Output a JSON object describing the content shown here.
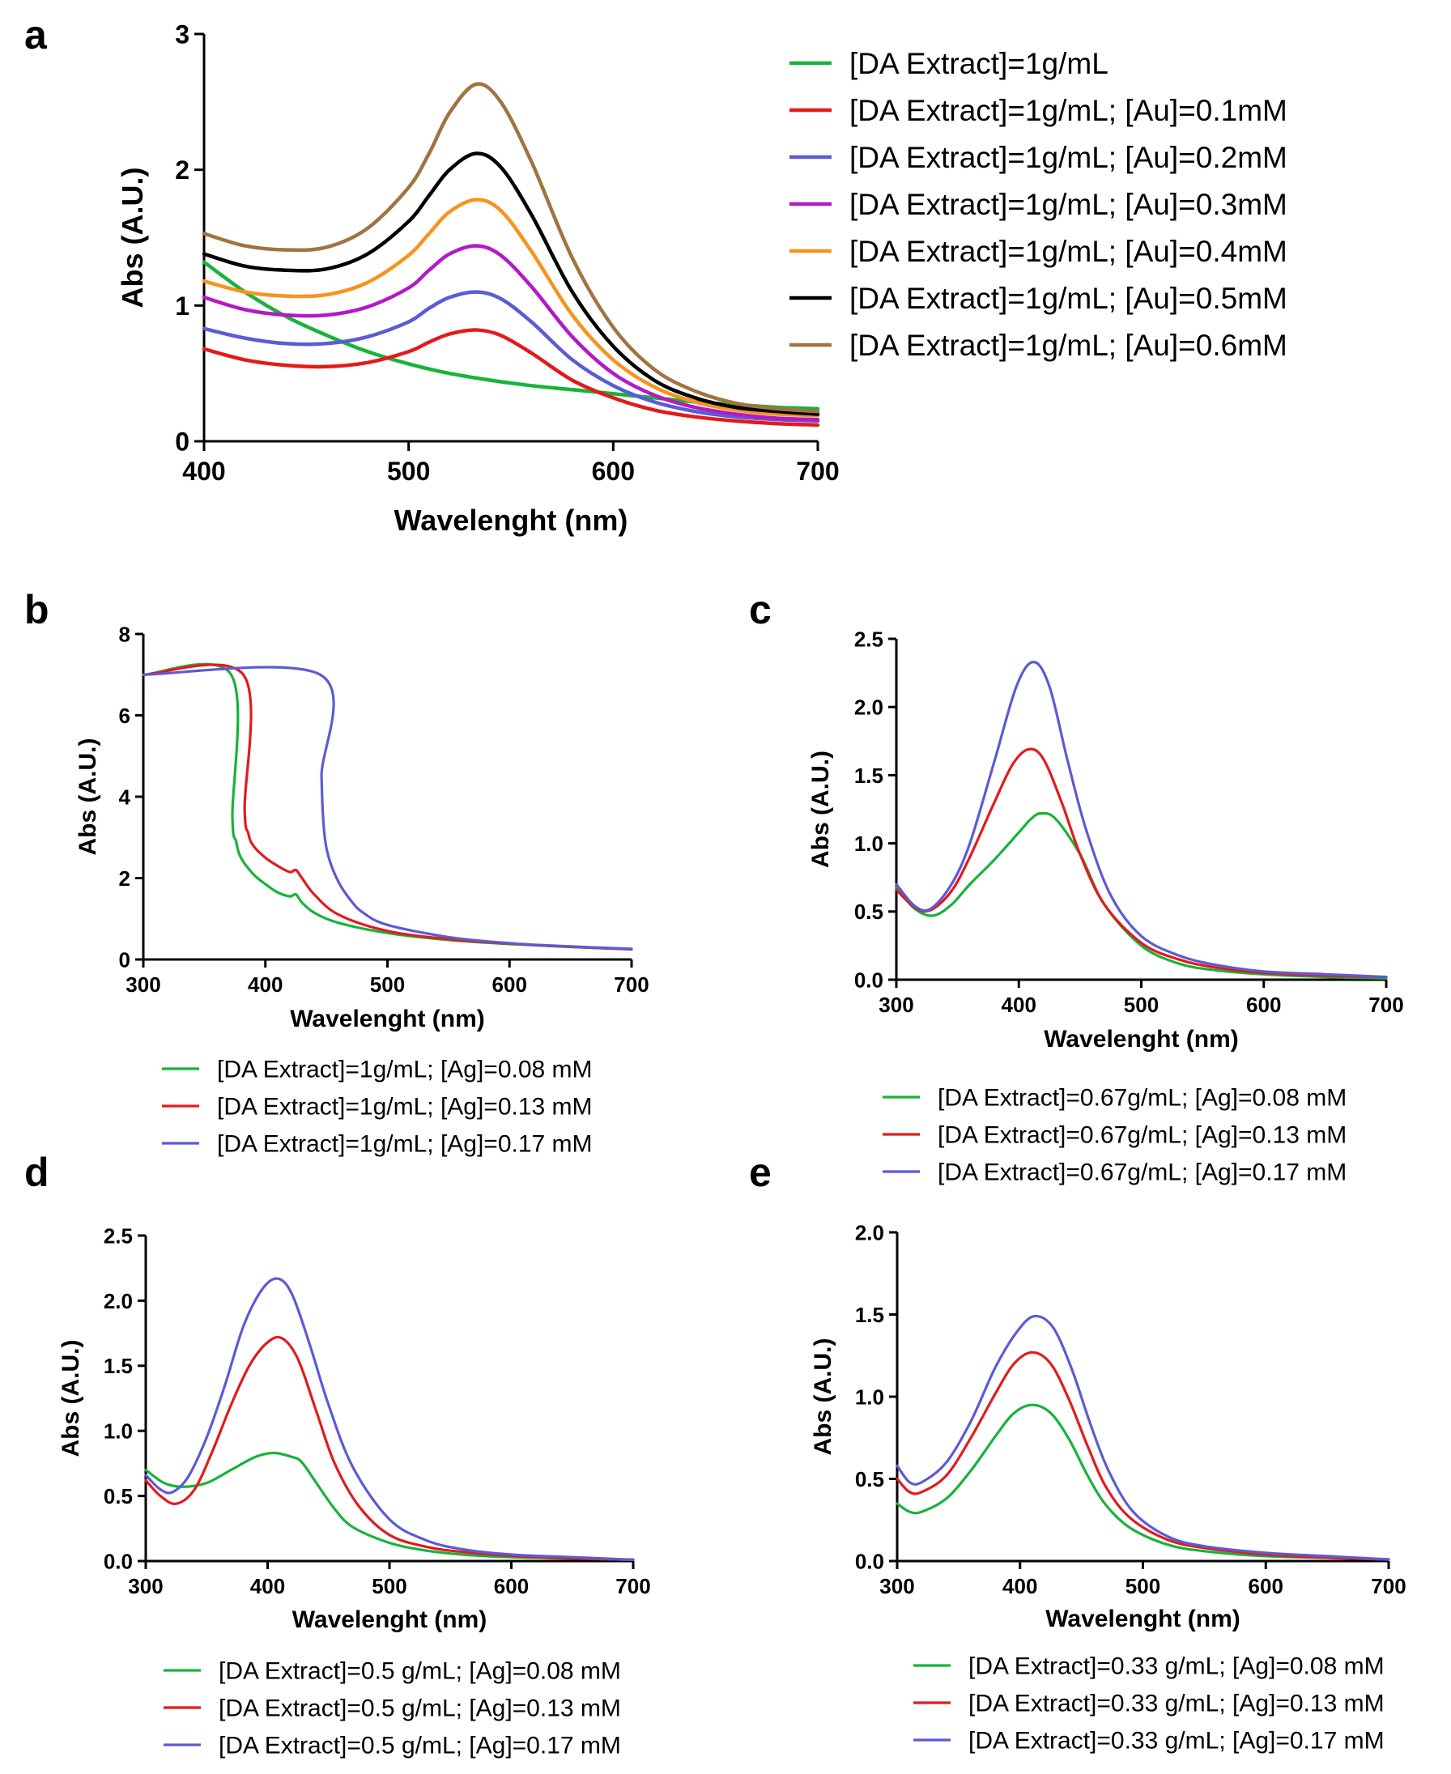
{
  "figure": {
    "panels": [
      "a",
      "b",
      "c",
      "d",
      "e"
    ]
  },
  "chart_data": [
    {
      "panel": "a",
      "type": "line",
      "xlabel": "Wavelenght (nm)",
      "ylabel": "Abs (A.U.)",
      "xlim": [
        400,
        700
      ],
      "ylim": [
        0,
        3
      ],
      "xticks": [
        400,
        500,
        600,
        700
      ],
      "yticks": [
        0,
        1,
        2,
        3
      ],
      "legend_position": "right",
      "series": [
        {
          "name": "[DA Extract]=1g/mL",
          "color": "#17b33a",
          "x": [
            400,
            420,
            440,
            460,
            480,
            500,
            520,
            540,
            560,
            580,
            600,
            620,
            640,
            660,
            680,
            700
          ],
          "y": [
            1.32,
            1.1,
            0.92,
            0.78,
            0.66,
            0.57,
            0.5,
            0.45,
            0.41,
            0.38,
            0.35,
            0.32,
            0.29,
            0.27,
            0.25,
            0.24
          ]
        },
        {
          "name": "[DA Extract]=1g/mL; [Au]=0.1mM",
          "color": "#e31a1c",
          "x": [
            400,
            420,
            440,
            460,
            480,
            500,
            510,
            520,
            533,
            545,
            560,
            580,
            600,
            620,
            640,
            660,
            680,
            700
          ],
          "y": [
            0.68,
            0.6,
            0.56,
            0.55,
            0.58,
            0.66,
            0.73,
            0.79,
            0.82,
            0.78,
            0.65,
            0.45,
            0.32,
            0.23,
            0.18,
            0.15,
            0.13,
            0.12
          ]
        },
        {
          "name": "[DA Extract]=1g/mL; [Au]=0.2mM",
          "color": "#5b5bd6",
          "x": [
            400,
            420,
            440,
            460,
            480,
            500,
            510,
            520,
            533,
            545,
            560,
            580,
            600,
            620,
            640,
            660,
            680,
            700
          ],
          "y": [
            0.83,
            0.76,
            0.72,
            0.72,
            0.77,
            0.88,
            0.98,
            1.06,
            1.1,
            1.05,
            0.88,
            0.6,
            0.41,
            0.29,
            0.22,
            0.18,
            0.16,
            0.15
          ]
        },
        {
          "name": "[DA Extract]=1g/mL; [Au]=0.3mM",
          "color": "#b31ac6",
          "x": [
            400,
            420,
            440,
            460,
            480,
            500,
            510,
            520,
            533,
            545,
            560,
            580,
            600,
            620,
            640,
            660,
            680,
            700
          ],
          "y": [
            1.06,
            0.97,
            0.93,
            0.93,
            0.99,
            1.13,
            1.26,
            1.38,
            1.44,
            1.37,
            1.14,
            0.77,
            0.5,
            0.34,
            0.25,
            0.2,
            0.17,
            0.16
          ]
        },
        {
          "name": "[DA Extract]=1g/mL; [Au]=0.4mM",
          "color": "#f7931e",
          "x": [
            400,
            420,
            440,
            460,
            480,
            500,
            510,
            520,
            533,
            545,
            560,
            580,
            600,
            620,
            640,
            660,
            680,
            700
          ],
          "y": [
            1.18,
            1.1,
            1.07,
            1.08,
            1.17,
            1.37,
            1.53,
            1.69,
            1.78,
            1.7,
            1.4,
            0.93,
            0.6,
            0.4,
            0.29,
            0.23,
            0.2,
            0.19
          ]
        },
        {
          "name": "[DA Extract]=1g/mL; [Au]=0.5mM",
          "color": "#000000",
          "x": [
            400,
            420,
            440,
            460,
            480,
            500,
            510,
            520,
            533,
            545,
            560,
            580,
            600,
            620,
            640,
            660,
            680,
            700
          ],
          "y": [
            1.38,
            1.29,
            1.26,
            1.27,
            1.38,
            1.62,
            1.81,
            2.0,
            2.12,
            2.02,
            1.67,
            1.1,
            0.7,
            0.45,
            0.32,
            0.25,
            0.22,
            0.2
          ]
        },
        {
          "name": "[DA Extract]=1g/mL; [Au]=0.6mM",
          "color": "#a0743f",
          "x": [
            400,
            420,
            440,
            460,
            480,
            500,
            510,
            520,
            533,
            545,
            560,
            580,
            600,
            620,
            640,
            660,
            680,
            700
          ],
          "y": [
            1.53,
            1.44,
            1.41,
            1.43,
            1.57,
            1.87,
            2.12,
            2.42,
            2.63,
            2.5,
            2.06,
            1.35,
            0.84,
            0.53,
            0.37,
            0.28,
            0.24,
            0.22
          ]
        }
      ]
    },
    {
      "panel": "b",
      "type": "line",
      "xlabel": "Wavelenght (nm)",
      "ylabel": "Abs (A.U.)",
      "xlim": [
        300,
        700
      ],
      "ylim": [
        0,
        8
      ],
      "xticks": [
        300,
        400,
        500,
        600,
        700
      ],
      "yticks": [
        0,
        2,
        4,
        6,
        8
      ],
      "legend_position": "bottom",
      "series": [
        {
          "name": "[DA Extract]=1g/mL; [Ag]=0.08 mM",
          "color": "#17b33a",
          "x": [
            300,
            372,
            373,
            376,
            380,
            390,
            400,
            410,
            420,
            425,
            430,
            440,
            460,
            500,
            550,
            600,
            650,
            700
          ],
          "y": [
            7.0,
            7.0,
            3.5,
            2.9,
            2.5,
            2.1,
            1.85,
            1.65,
            1.55,
            1.6,
            1.4,
            1.15,
            0.9,
            0.65,
            0.48,
            0.38,
            0.31,
            0.25
          ]
        },
        {
          "name": "[DA Extract]=1g/mL; [Ag]=0.13 mM",
          "color": "#e31a1c",
          "x": [
            300,
            382,
            383,
            386,
            390,
            400,
            410,
            420,
            425,
            430,
            440,
            460,
            500,
            550,
            600,
            650,
            700
          ],
          "y": [
            7.0,
            7.0,
            3.7,
            3.1,
            2.8,
            2.5,
            2.3,
            2.15,
            2.2,
            2.0,
            1.6,
            1.1,
            0.7,
            0.5,
            0.39,
            0.31,
            0.25
          ]
        },
        {
          "name": "[DA Extract]=1g/mL; [Ag]=0.17 mM",
          "color": "#5b5bd6",
          "x": [
            300,
            445,
            446,
            448,
            452,
            460,
            470,
            480,
            500,
            550,
            600,
            650,
            700
          ],
          "y": [
            7.0,
            7.0,
            4.5,
            3.2,
            2.5,
            1.9,
            1.45,
            1.15,
            0.85,
            0.55,
            0.4,
            0.32,
            0.26
          ]
        }
      ]
    },
    {
      "panel": "c",
      "type": "line",
      "xlabel": "Wavelenght (nm)",
      "ylabel": "Abs (A.U.)",
      "xlim": [
        300,
        700
      ],
      "ylim": [
        0,
        2.5
      ],
      "xticks": [
        300,
        400,
        500,
        600,
        700
      ],
      "yticks": [
        "0.0",
        "0.5",
        "1.0",
        "1.5",
        "2.0",
        "2.5"
      ],
      "legend_position": "bottom",
      "series": [
        {
          "name": "[DA Extract]=0.67g/mL; [Ag]=0.08 mM",
          "color": "#17b33a",
          "x": [
            300,
            315,
            330,
            345,
            360,
            380,
            400,
            410,
            418,
            430,
            450,
            470,
            500,
            530,
            560,
            600,
            650,
            700
          ],
          "y": [
            0.68,
            0.52,
            0.47,
            0.55,
            0.7,
            0.88,
            1.08,
            1.18,
            1.22,
            1.18,
            0.92,
            0.55,
            0.25,
            0.12,
            0.07,
            0.04,
            0.02,
            0.01
          ]
        },
        {
          "name": "[DA Extract]=0.67g/mL; [Ag]=0.13 mM",
          "color": "#e31a1c",
          "x": [
            300,
            315,
            328,
            345,
            360,
            380,
            395,
            408,
            420,
            435,
            450,
            470,
            500,
            530,
            560,
            600,
            650,
            700
          ],
          "y": [
            0.66,
            0.53,
            0.51,
            0.65,
            0.9,
            1.3,
            1.58,
            1.69,
            1.62,
            1.3,
            0.92,
            0.55,
            0.27,
            0.15,
            0.09,
            0.05,
            0.03,
            0.02
          ]
        },
        {
          "name": "[DA Extract]=0.67g/mL; [Ag]=0.17 mM",
          "color": "#5b5bd6",
          "x": [
            300,
            315,
            328,
            345,
            360,
            380,
            398,
            412,
            425,
            440,
            455,
            475,
            500,
            530,
            560,
            600,
            650,
            700
          ],
          "y": [
            0.7,
            0.54,
            0.52,
            0.7,
            1.0,
            1.6,
            2.15,
            2.33,
            2.15,
            1.6,
            1.1,
            0.62,
            0.32,
            0.18,
            0.11,
            0.06,
            0.04,
            0.02
          ]
        }
      ]
    },
    {
      "panel": "d",
      "type": "line",
      "xlabel": "Wavelenght (nm)",
      "ylabel": "Abs (A.U.)",
      "xlim": [
        300,
        700
      ],
      "ylim": [
        0,
        2.5
      ],
      "xticks": [
        300,
        400,
        500,
        600,
        700
      ],
      "yticks": [
        "0.0",
        "0.5",
        "1.0",
        "1.5",
        "2.0",
        "2.5"
      ],
      "legend_position": "bottom",
      "series": [
        {
          "name": "[DA Extract]=0.5 g/mL; [Ag]=0.08 mM",
          "color": "#17b33a",
          "x": [
            300,
            315,
            330,
            350,
            370,
            390,
            405,
            420,
            428,
            440,
            455,
            470,
            500,
            530,
            560,
            600,
            650,
            700
          ],
          "y": [
            0.7,
            0.6,
            0.57,
            0.6,
            0.7,
            0.8,
            0.83,
            0.8,
            0.76,
            0.6,
            0.4,
            0.26,
            0.14,
            0.08,
            0.05,
            0.03,
            0.02,
            0.01
          ]
        },
        {
          "name": "[DA Extract]=0.5 g/mL; [Ag]=0.13 mM",
          "color": "#e31a1c",
          "x": [
            300,
            312,
            325,
            340,
            355,
            370,
            385,
            400,
            412,
            425,
            440,
            455,
            475,
            500,
            530,
            560,
            600,
            650,
            700
          ],
          "y": [
            0.62,
            0.5,
            0.44,
            0.55,
            0.85,
            1.2,
            1.5,
            1.68,
            1.71,
            1.55,
            1.15,
            0.75,
            0.42,
            0.2,
            0.11,
            0.07,
            0.04,
            0.02,
            0.01
          ]
        },
        {
          "name": "[DA Extract]=0.5 g/mL; [Ag]=0.17 mM",
          "color": "#5b5bd6",
          "x": [
            300,
            312,
            322,
            335,
            350,
            365,
            380,
            395,
            408,
            420,
            435,
            450,
            470,
            500,
            530,
            560,
            600,
            650,
            700
          ],
          "y": [
            0.66,
            0.55,
            0.53,
            0.65,
            0.95,
            1.35,
            1.8,
            2.08,
            2.17,
            2.05,
            1.65,
            1.2,
            0.72,
            0.32,
            0.16,
            0.09,
            0.05,
            0.03,
            0.01
          ]
        }
      ]
    },
    {
      "panel": "e",
      "type": "line",
      "xlabel": "Wavelenght (nm)",
      "ylabel": "Abs (A.U.)",
      "xlim": [
        300,
        700
      ],
      "ylim": [
        0,
        2
      ],
      "xticks": [
        300,
        400,
        500,
        600,
        700
      ],
      "yticks": [
        "0.0",
        "0.5",
        "1.0",
        "1.5",
        "2.0"
      ],
      "legend_position": "bottom",
      "series": [
        {
          "name": "[DA Extract]=0.33 g/mL; [Ag]=0.08 mM",
          "color": "#17b33a",
          "x": [
            300,
            310,
            320,
            340,
            360,
            380,
            395,
            410,
            425,
            440,
            455,
            470,
            490,
            520,
            550,
            600,
            650,
            700
          ],
          "y": [
            0.35,
            0.3,
            0.3,
            0.38,
            0.55,
            0.76,
            0.9,
            0.95,
            0.9,
            0.74,
            0.52,
            0.34,
            0.2,
            0.1,
            0.06,
            0.03,
            0.02,
            0.01
          ]
        },
        {
          "name": "[DA Extract]=0.33 g/mL; [Ag]=0.13 mM",
          "color": "#e31a1c",
          "x": [
            300,
            310,
            320,
            340,
            360,
            380,
            395,
            410,
            425,
            440,
            455,
            470,
            490,
            520,
            550,
            600,
            650,
            700
          ],
          "y": [
            0.5,
            0.42,
            0.42,
            0.52,
            0.75,
            1.02,
            1.2,
            1.27,
            1.2,
            0.98,
            0.7,
            0.45,
            0.26,
            0.13,
            0.08,
            0.04,
            0.02,
            0.01
          ]
        },
        {
          "name": "[DA Extract]=0.33 g/mL; [Ag]=0.17 mM",
          "color": "#5b5bd6",
          "x": [
            300,
            310,
            320,
            340,
            360,
            380,
            398,
            412,
            427,
            442,
            457,
            472,
            492,
            520,
            550,
            600,
            650,
            700
          ],
          "y": [
            0.58,
            0.48,
            0.48,
            0.6,
            0.85,
            1.18,
            1.4,
            1.49,
            1.42,
            1.17,
            0.84,
            0.55,
            0.3,
            0.15,
            0.09,
            0.05,
            0.03,
            0.01
          ]
        }
      ]
    }
  ]
}
